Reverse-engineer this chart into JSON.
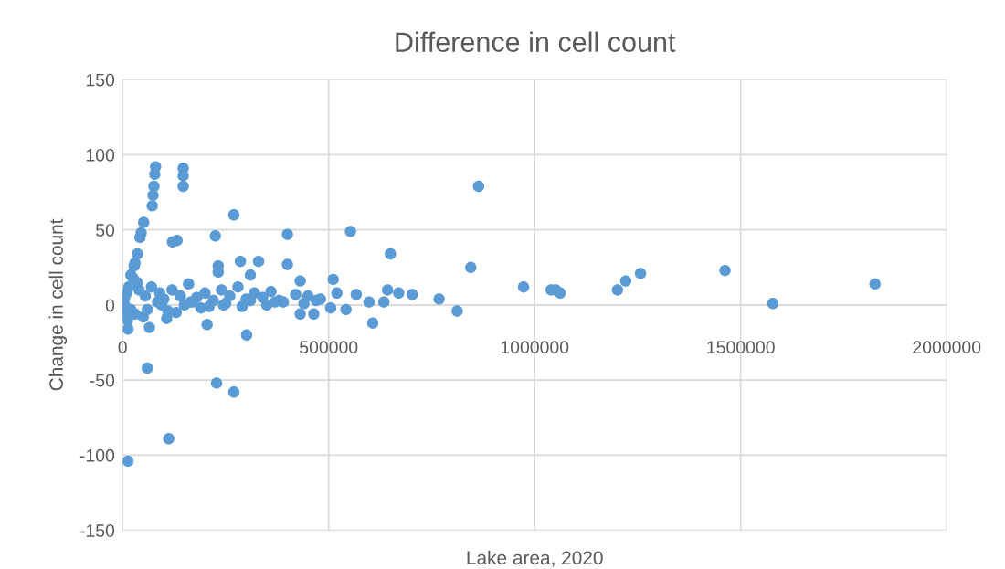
{
  "chart_data": {
    "type": "scatter",
    "title": "Difference in cell count",
    "xlabel": "Lake area, 2020",
    "ylabel": "Change in cell count",
    "xlim": [
      0,
      2000000
    ],
    "xticks": [
      0,
      500000,
      1000000,
      1500000,
      2000000
    ],
    "ylim": [
      -150,
      150
    ],
    "yticks": [
      -150,
      -100,
      -50,
      0,
      50,
      100,
      150
    ],
    "grid": true,
    "marker": "circle",
    "series": [
      {
        "color": "#5b9bd5",
        "x": [
          1826000,
          1578000,
          1462000,
          1257000,
          1221000,
          1201000,
          1062000,
          1051000,
          1040000,
          973000,
          845000,
          864000,
          812000,
          768000,
          607000,
          643000,
          670000,
          703000,
          634000,
          598000,
          567000,
          650000,
          553000,
          80000,
          78000,
          76000,
          74000,
          72000,
          147000,
          147000,
          147000,
          270000,
          225000,
          400000,
          121000,
          132000,
          51000,
          42000,
          36000,
          28000,
          286000,
          330000,
          400000,
          232000,
          232000,
          310000,
          431000,
          511000,
          205000,
          301000,
          431000,
          464000,
          542000,
          505000,
          65000,
          107000,
          13000,
          60000,
          228000,
          270000,
          112000,
          13000,
          20000,
          30000,
          45000,
          35000,
          10000,
          5000,
          8000,
          15000,
          25000,
          40000,
          55000,
          70000,
          90000,
          100000,
          120000,
          140000,
          160000,
          180000,
          200000,
          220000,
          240000,
          260000,
          280000,
          300000,
          320000,
          340000,
          360000,
          380000,
          420000,
          450000,
          480000,
          520000,
          20000,
          50000,
          85000,
          110000,
          150000,
          170000,
          190000,
          250000,
          290000,
          350000,
          390000,
          440000,
          470000,
          5000,
          12000,
          30000,
          60000,
          95000,
          130000,
          165000,
          210000,
          245000,
          310000,
          370000
        ],
        "values": [
          14,
          1,
          23,
          21,
          16,
          10,
          8,
          10,
          10,
          12,
          25,
          79,
          -4,
          4,
          -12,
          10,
          8,
          7,
          2,
          2,
          7,
          34,
          49,
          92,
          87,
          79,
          73,
          66,
          91,
          86,
          79,
          60,
          46,
          47,
          42,
          43,
          55,
          45,
          34,
          26,
          29,
          29,
          27,
          26,
          22,
          20,
          16,
          17,
          -13,
          -20,
          -6,
          -6,
          -3,
          -2,
          -15,
          -9,
          -16,
          -42,
          -52,
          -58,
          -89,
          -104,
          20,
          28,
          48,
          15,
          8,
          5,
          -5,
          12,
          18,
          10,
          6,
          12,
          8,
          4,
          10,
          6,
          14,
          5,
          8,
          3,
          10,
          6,
          12,
          4,
          8,
          5,
          9,
          3,
          7,
          6,
          4,
          8,
          -3,
          -8,
          2,
          -4,
          0,
          2,
          -2,
          1,
          -1,
          0,
          2,
          1,
          3,
          0,
          -10,
          -6,
          -3,
          0,
          -5,
          2,
          -1,
          0,
          3,
          2
        ]
      }
    ]
  }
}
